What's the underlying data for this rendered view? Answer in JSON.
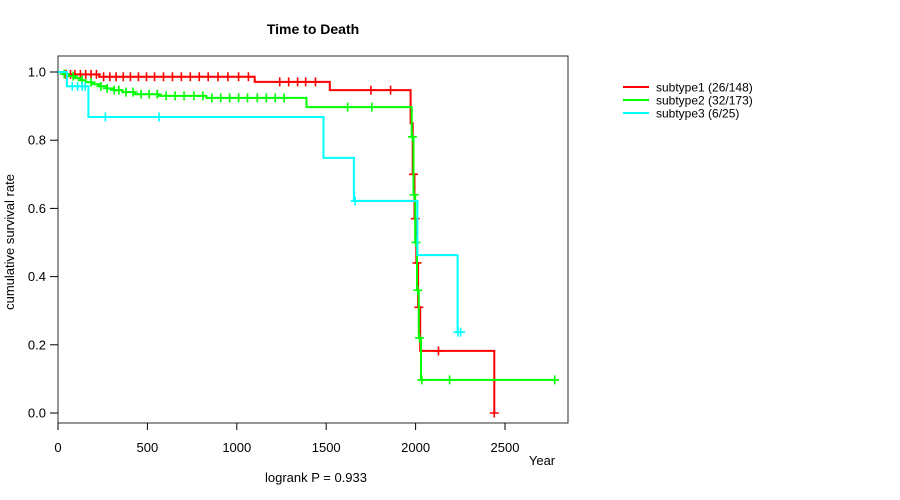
{
  "title": "Time to Death",
  "axes": {
    "x_label": "Year",
    "y_label": "cumulative survival rate",
    "x_ticks": [
      "0",
      "500",
      "1000",
      "1500",
      "2000",
      "2500"
    ],
    "y_ticks": [
      "1.0",
      "0.8",
      "0.6",
      "0.4",
      "0.2",
      "0.0"
    ]
  },
  "footer": {
    "logrank": "logrank P = 0.933"
  },
  "legend": {
    "items": [
      {
        "label": "subtype1 (26/148)",
        "color": "#ff0000"
      },
      {
        "label": "subtype2 (32/173)",
        "color": "#00ff00"
      },
      {
        "label": "subtype3 (6/25)",
        "color": "#00ffff"
      }
    ]
  },
  "chart_data": {
    "type": "line",
    "subtype": "kaplan-meier-step",
    "title": "Time to Death",
    "xlabel": "Year",
    "ylabel": "cumulative survival rate",
    "xlim": [
      0,
      2850
    ],
    "ylim": [
      0.0,
      1.0
    ],
    "x_tick_values": [
      0,
      500,
      1000,
      1500,
      2000,
      2500
    ],
    "y_tick_values": [
      1.0,
      0.8,
      0.6,
      0.4,
      0.2,
      0.0
    ],
    "annotation": "logrank P = 0.933",
    "legend_position": "right-outside",
    "grid": false,
    "series": [
      {
        "name": "subtype1 (26/148)",
        "color": "#ff0000",
        "steps": [
          [
            0,
            1.0
          ],
          [
            40,
            0.993
          ],
          [
            230,
            0.986
          ],
          [
            1100,
            0.971
          ],
          [
            1520,
            0.947
          ],
          [
            1972,
            0.85
          ],
          [
            1984,
            0.7
          ],
          [
            1994,
            0.57
          ],
          [
            2004,
            0.44
          ],
          [
            2014,
            0.31
          ],
          [
            2026,
            0.182
          ],
          [
            2440,
            0.0
          ]
        ],
        "end": 2440,
        "censors": [
          [
            45,
            0.993
          ],
          [
            70,
            0.993
          ],
          [
            95,
            0.993
          ],
          [
            125,
            0.993
          ],
          [
            155,
            0.993
          ],
          [
            185,
            0.993
          ],
          [
            215,
            0.993
          ],
          [
            255,
            0.986
          ],
          [
            290,
            0.986
          ],
          [
            325,
            0.986
          ],
          [
            365,
            0.986
          ],
          [
            405,
            0.986
          ],
          [
            450,
            0.986
          ],
          [
            495,
            0.986
          ],
          [
            540,
            0.986
          ],
          [
            590,
            0.986
          ],
          [
            640,
            0.986
          ],
          [
            690,
            0.986
          ],
          [
            740,
            0.986
          ],
          [
            790,
            0.986
          ],
          [
            840,
            0.986
          ],
          [
            895,
            0.986
          ],
          [
            950,
            0.986
          ],
          [
            1010,
            0.986
          ],
          [
            1065,
            0.986
          ],
          [
            1240,
            0.971
          ],
          [
            1290,
            0.971
          ],
          [
            1340,
            0.971
          ],
          [
            1385,
            0.971
          ],
          [
            1440,
            0.971
          ],
          [
            1750,
            0.947
          ],
          [
            1860,
            0.947
          ],
          [
            1988,
            0.7
          ],
          [
            1998,
            0.57
          ],
          [
            2008,
            0.44
          ],
          [
            2018,
            0.31
          ],
          [
            2128,
            0.182
          ],
          [
            2440,
            0.0
          ]
        ]
      },
      {
        "name": "subtype2 (32/173)",
        "color": "#00ff00",
        "steps": [
          [
            0,
            1.0
          ],
          [
            30,
            0.994
          ],
          [
            60,
            0.988
          ],
          [
            95,
            0.982
          ],
          [
            125,
            0.976
          ],
          [
            155,
            0.97
          ],
          [
            190,
            0.964
          ],
          [
            230,
            0.958
          ],
          [
            270,
            0.952
          ],
          [
            310,
            0.947
          ],
          [
            360,
            0.941
          ],
          [
            430,
            0.935
          ],
          [
            560,
            0.93
          ],
          [
            830,
            0.924
          ],
          [
            1390,
            0.897
          ],
          [
            1978,
            0.81
          ],
          [
            1988,
            0.64
          ],
          [
            1998,
            0.5
          ],
          [
            2008,
            0.36
          ],
          [
            2018,
            0.22
          ],
          [
            2030,
            0.097
          ]
        ],
        "end": 2780,
        "censors": [
          [
            35,
            0.994
          ],
          [
            85,
            0.988
          ],
          [
            135,
            0.976
          ],
          [
            185,
            0.97
          ],
          [
            240,
            0.958
          ],
          [
            275,
            0.952
          ],
          [
            315,
            0.947
          ],
          [
            340,
            0.947
          ],
          [
            380,
            0.941
          ],
          [
            420,
            0.941
          ],
          [
            465,
            0.935
          ],
          [
            510,
            0.935
          ],
          [
            555,
            0.935
          ],
          [
            605,
            0.93
          ],
          [
            655,
            0.93
          ],
          [
            705,
            0.93
          ],
          [
            760,
            0.93
          ],
          [
            810,
            0.93
          ],
          [
            860,
            0.924
          ],
          [
            910,
            0.924
          ],
          [
            960,
            0.924
          ],
          [
            1010,
            0.924
          ],
          [
            1060,
            0.924
          ],
          [
            1115,
            0.924
          ],
          [
            1165,
            0.924
          ],
          [
            1215,
            0.924
          ],
          [
            1265,
            0.924
          ],
          [
            1620,
            0.897
          ],
          [
            1755,
            0.897
          ],
          [
            1982,
            0.81
          ],
          [
            1992,
            0.64
          ],
          [
            2002,
            0.5
          ],
          [
            2012,
            0.36
          ],
          [
            2022,
            0.22
          ],
          [
            2035,
            0.097
          ],
          [
            2190,
            0.097
          ],
          [
            2778,
            0.097
          ]
        ]
      },
      {
        "name": "subtype3 (6/25)",
        "color": "#00ffff",
        "steps": [
          [
            0,
            1.0
          ],
          [
            50,
            0.958
          ],
          [
            170,
            0.868
          ],
          [
            1485,
            0.748
          ],
          [
            1655,
            0.622
          ],
          [
            2010,
            0.463
          ],
          [
            2235,
            0.237
          ]
        ],
        "end": 2255,
        "censors": [
          [
            80,
            0.958
          ],
          [
            110,
            0.958
          ],
          [
            135,
            0.958
          ],
          [
            152,
            0.958
          ],
          [
            265,
            0.868
          ],
          [
            565,
            0.868
          ],
          [
            1662,
            0.622
          ],
          [
            2237,
            0.237
          ],
          [
            2252,
            0.237
          ]
        ]
      }
    ]
  }
}
